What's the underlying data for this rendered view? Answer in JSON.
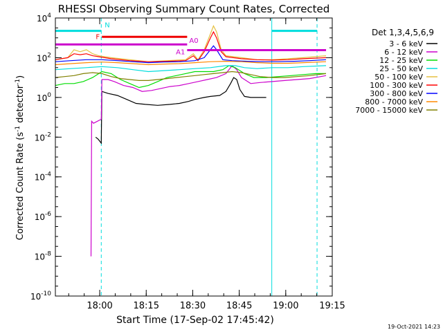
{
  "chart_data": {
    "type": "line",
    "title": "RHESSI Observing Summary Count Rates, Corrected",
    "xlabel": "Start Time (17-Sep-02 17:45:42)",
    "ylabel_prefix": "Corrected Count Rate (s",
    "ylabel_sup1": "-1",
    "ylabel_mid": " detector",
    "ylabel_sup2": "-1",
    "ylabel_suffix": ")",
    "y_scale": "log",
    "ylim_exp": [
      -10,
      4
    ],
    "y_tick_exps": [
      -10,
      -8,
      -6,
      -4,
      -2,
      0,
      2,
      4
    ],
    "xlim_min": [
      0,
      87.3
    ],
    "x_ticks": [
      {
        "label": "18:00",
        "min": 14.3
      },
      {
        "label": "18:15",
        "min": 29.3
      },
      {
        "label": "18:30",
        "min": 44.3
      },
      {
        "label": "18:45",
        "min": 59.3
      },
      {
        "label": "19:00",
        "min": 74.3
      },
      {
        "label": "19:15",
        "min": 89.3
      }
    ],
    "legend_title": "Det 1,3,4,5,6,9",
    "legend_position": "right",
    "timestamp": "19-Oct-2021 14:23",
    "series": [
      {
        "name": "3 - 6 keV",
        "color": "#000000",
        "points": [
          [
            13,
            -2.0
          ],
          [
            13.8,
            -2.1
          ],
          [
            14.8,
            -2.3
          ],
          [
            15,
            0.3
          ],
          [
            17,
            0.2
          ],
          [
            20,
            0.1
          ],
          [
            23,
            -0.1
          ],
          [
            26,
            -0.3
          ],
          [
            29,
            -0.35
          ],
          [
            33,
            -0.4
          ],
          [
            37,
            -0.35
          ],
          [
            40,
            -0.3
          ],
          [
            43,
            -0.2
          ],
          [
            45,
            -0.1
          ],
          [
            48,
            0.0
          ],
          [
            50,
            0.05
          ],
          [
            53,
            0.1
          ],
          [
            55,
            0.3
          ],
          [
            56.5,
            0.7
          ],
          [
            57.5,
            1.0
          ],
          [
            58.5,
            0.9
          ],
          [
            59.5,
            0.4
          ],
          [
            61,
            0.05
          ],
          [
            63,
            0.0
          ],
          [
            66,
            0.0
          ],
          [
            68,
            0.0
          ]
        ]
      },
      {
        "name": "6 - 12 keV",
        "color": "#cc00cc",
        "points": [
          [
            11.5,
            -8.0
          ],
          [
            11.7,
            -1.2
          ],
          [
            12.3,
            -1.3
          ],
          [
            14.8,
            -1.1
          ],
          [
            15,
            0.9
          ],
          [
            17,
            0.9
          ],
          [
            19,
            0.8
          ],
          [
            22,
            0.6
          ],
          [
            25,
            0.5
          ],
          [
            28,
            0.3
          ],
          [
            31,
            0.35
          ],
          [
            34,
            0.45
          ],
          [
            37,
            0.55
          ],
          [
            40,
            0.6
          ],
          [
            43,
            0.7
          ],
          [
            46,
            0.8
          ],
          [
            49,
            0.9
          ],
          [
            52,
            1.0
          ],
          [
            55,
            1.2
          ],
          [
            57,
            1.6
          ],
          [
            58.5,
            1.4
          ],
          [
            60,
            1.0
          ],
          [
            63,
            0.7
          ],
          [
            66,
            0.75
          ],
          [
            70,
            0.8
          ],
          [
            74,
            0.85
          ],
          [
            78,
            0.9
          ],
          [
            82,
            0.95
          ],
          [
            87.3,
            1.1
          ]
        ]
      },
      {
        "name": "12 - 25 keV",
        "color": "#00dd00",
        "points": [
          [
            0,
            0.6
          ],
          [
            3,
            0.7
          ],
          [
            6,
            0.7
          ],
          [
            9,
            0.8
          ],
          [
            12,
            1.0
          ],
          [
            15,
            1.3
          ],
          [
            18,
            1.2
          ],
          [
            21,
            0.9
          ],
          [
            24,
            0.7
          ],
          [
            27,
            0.5
          ],
          [
            30,
            0.6
          ],
          [
            33,
            0.8
          ],
          [
            36,
            1.0
          ],
          [
            39,
            1.1
          ],
          [
            42,
            1.2
          ],
          [
            45,
            1.3
          ],
          [
            48,
            1.3
          ],
          [
            51,
            1.3
          ],
          [
            54,
            1.4
          ],
          [
            56,
            1.6
          ],
          [
            58,
            1.5
          ],
          [
            61,
            1.2
          ],
          [
            64,
            1.0
          ],
          [
            68,
            1.0
          ],
          [
            72,
            1.05
          ],
          [
            76,
            1.1
          ],
          [
            80,
            1.15
          ],
          [
            84,
            1.2
          ],
          [
            87.3,
            1.2
          ]
        ]
      },
      {
        "name": "25 - 50 keV",
        "color": "#00dddd",
        "points": [
          [
            0,
            1.4
          ],
          [
            5,
            1.45
          ],
          [
            10,
            1.5
          ],
          [
            15,
            1.55
          ],
          [
            20,
            1.5
          ],
          [
            25,
            1.4
          ],
          [
            30,
            1.3
          ],
          [
            35,
            1.35
          ],
          [
            40,
            1.4
          ],
          [
            45,
            1.45
          ],
          [
            50,
            1.5
          ],
          [
            55,
            1.6
          ],
          [
            58,
            1.6
          ],
          [
            61,
            1.5
          ],
          [
            65,
            1.45
          ],
          [
            70,
            1.5
          ],
          [
            75,
            1.5
          ],
          [
            80,
            1.55
          ],
          [
            87.3,
            1.6
          ]
        ]
      },
      {
        "name": "50 - 100 keV",
        "color": "#e5c040",
        "points": [
          [
            0,
            1.9
          ],
          [
            4,
            2.0
          ],
          [
            6,
            2.4
          ],
          [
            8,
            2.3
          ],
          [
            10,
            2.4
          ],
          [
            12,
            2.2
          ],
          [
            14,
            2.1
          ],
          [
            18,
            2.0
          ],
          [
            24,
            1.9
          ],
          [
            30,
            1.8
          ],
          [
            36,
            1.85
          ],
          [
            42,
            1.9
          ],
          [
            44.5,
            2.2
          ],
          [
            46,
            1.9
          ],
          [
            48,
            2.4
          ],
          [
            50,
            3.2
          ],
          [
            51,
            3.6
          ],
          [
            52,
            3.3
          ],
          [
            53.5,
            2.4
          ],
          [
            55,
            2.1
          ],
          [
            60,
            2.0
          ],
          [
            65,
            1.9
          ],
          [
            70,
            1.9
          ],
          [
            75,
            1.95
          ],
          [
            80,
            2.0
          ],
          [
            87.3,
            2.1
          ]
        ]
      },
      {
        "name": "100 - 300 keV",
        "color": "#ff0000",
        "points": [
          [
            0,
            1.9
          ],
          [
            4,
            2.0
          ],
          [
            6,
            2.2
          ],
          [
            8,
            2.15
          ],
          [
            10,
            2.2
          ],
          [
            12,
            2.1
          ],
          [
            14,
            2.05
          ],
          [
            18,
            1.95
          ],
          [
            24,
            1.85
          ],
          [
            30,
            1.8
          ],
          [
            36,
            1.82
          ],
          [
            42,
            1.85
          ],
          [
            44.5,
            2.1
          ],
          [
            46,
            1.85
          ],
          [
            48,
            2.3
          ],
          [
            50,
            3.0
          ],
          [
            51,
            3.3
          ],
          [
            52,
            3.0
          ],
          [
            53.5,
            2.3
          ],
          [
            55,
            2.05
          ],
          [
            60,
            1.95
          ],
          [
            65,
            1.9
          ],
          [
            70,
            1.88
          ],
          [
            75,
            1.9
          ],
          [
            80,
            1.95
          ],
          [
            87.3,
            2.0
          ]
        ]
      },
      {
        "name": "300 - 800 keV",
        "color": "#0000ff",
        "points": [
          [
            0,
            1.8
          ],
          [
            5,
            1.85
          ],
          [
            10,
            1.9
          ],
          [
            15,
            1.9
          ],
          [
            20,
            1.85
          ],
          [
            25,
            1.8
          ],
          [
            30,
            1.75
          ],
          [
            35,
            1.78
          ],
          [
            40,
            1.8
          ],
          [
            45,
            1.85
          ],
          [
            48,
            2.0
          ],
          [
            50,
            2.4
          ],
          [
            51,
            2.6
          ],
          [
            52,
            2.4
          ],
          [
            54,
            1.9
          ],
          [
            57,
            1.85
          ],
          [
            62,
            1.82
          ],
          [
            67,
            1.8
          ],
          [
            72,
            1.8
          ],
          [
            77,
            1.82
          ],
          [
            82,
            1.85
          ],
          [
            87.3,
            1.9
          ]
        ]
      },
      {
        "name": "800 - 7000 keV",
        "color": "#ff8800",
        "points": [
          [
            0,
            1.65
          ],
          [
            5,
            1.7
          ],
          [
            10,
            1.75
          ],
          [
            15,
            1.78
          ],
          [
            20,
            1.75
          ],
          [
            25,
            1.7
          ],
          [
            30,
            1.65
          ],
          [
            35,
            1.68
          ],
          [
            40,
            1.7
          ],
          [
            45,
            1.75
          ],
          [
            50,
            1.8
          ],
          [
            55,
            1.82
          ],
          [
            60,
            1.8
          ],
          [
            65,
            1.75
          ],
          [
            70,
            1.72
          ],
          [
            75,
            1.72
          ],
          [
            80,
            1.75
          ],
          [
            87.3,
            1.8
          ]
        ]
      },
      {
        "name": "7000 - 15000 keV",
        "color": "#808000",
        "points": [
          [
            0,
            1.0
          ],
          [
            3,
            1.05
          ],
          [
            6,
            1.1
          ],
          [
            9,
            1.2
          ],
          [
            12,
            1.25
          ],
          [
            15,
            1.2
          ],
          [
            18,
            1.05
          ],
          [
            21,
            0.95
          ],
          [
            24,
            0.9
          ],
          [
            27,
            0.85
          ],
          [
            30,
            0.85
          ],
          [
            33,
            0.9
          ],
          [
            36,
            0.95
          ],
          [
            39,
            1.0
          ],
          [
            42,
            1.05
          ],
          [
            45,
            1.1
          ],
          [
            48,
            1.15
          ],
          [
            51,
            1.2
          ],
          [
            54,
            1.25
          ],
          [
            57,
            1.3
          ],
          [
            60,
            1.25
          ],
          [
            63,
            1.15
          ],
          [
            66,
            1.05
          ],
          [
            70,
            1.0
          ],
          [
            74,
            1.0
          ],
          [
            78,
            1.05
          ],
          [
            82,
            1.1
          ],
          [
            87.3,
            1.2
          ]
        ]
      }
    ],
    "state_bars": [
      {
        "label": "N",
        "color": "#00dddd",
        "segments": [
          [
            0,
            14.8
          ],
          [
            69.8,
            84.4
          ]
        ],
        "y_exp": 3.35
      },
      {
        "label": "F",
        "color": "#ee0000",
        "segments": [
          [
            15,
            42.5
          ]
        ],
        "y_exp": 3.05
      },
      {
        "label": "A0",
        "color": "#cc00cc",
        "segments": [
          [
            0,
            42.5
          ]
        ],
        "y_exp": 2.67
      },
      {
        "label": "A1",
        "color": "#cc00cc",
        "segments": [
          [
            42.5,
            87.3
          ]
        ],
        "y_exp": 2.38
      }
    ],
    "vlines": [
      {
        "min": 0.0,
        "color": "#00dddd",
        "dash": false
      },
      {
        "min": 14.8,
        "color": "#00dddd",
        "dash": true
      },
      {
        "min": 69.8,
        "color": "#00dddd",
        "dash": false
      },
      {
        "min": 84.4,
        "color": "#00dddd",
        "dash": true
      }
    ]
  }
}
